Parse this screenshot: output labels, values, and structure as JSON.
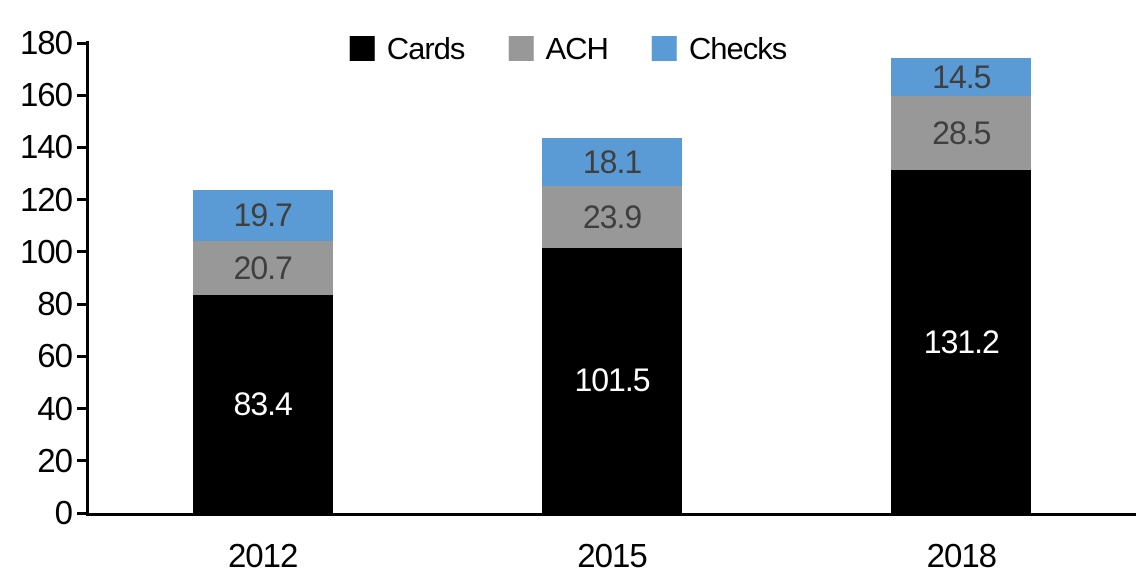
{
  "chart_data": {
    "type": "bar",
    "stacked": true,
    "title": "",
    "xlabel": "",
    "ylabel": "",
    "categories": [
      "2012",
      "2015",
      "2018"
    ],
    "series": [
      {
        "name": "Cards",
        "values": [
          83.4,
          101.5,
          131.2
        ],
        "color": "#000000",
        "label_color": "#FFFFFF"
      },
      {
        "name": "ACH",
        "values": [
          20.7,
          23.9,
          28.5
        ],
        "color": "#989898",
        "label_color": "#3F3F3F"
      },
      {
        "name": "Checks",
        "values": [
          19.7,
          18.1,
          14.5
        ],
        "color": "#5B9BD5",
        "label_color": "#3F3F3F"
      }
    ],
    "totals": [
      123.8,
      143.5,
      174.2
    ],
    "ylim": [
      0,
      180
    ],
    "ytick_step": 20,
    "y_tick_labels": [
      "0",
      "20",
      "40",
      "60",
      "80",
      "100",
      "120",
      "140",
      "160",
      "180"
    ],
    "legend_position": "top-center",
    "legend_order": [
      "Cards",
      "ACH",
      "Checks"
    ],
    "grid": false,
    "axis_color": "#000000",
    "background_color": "#FFFFFF"
  }
}
